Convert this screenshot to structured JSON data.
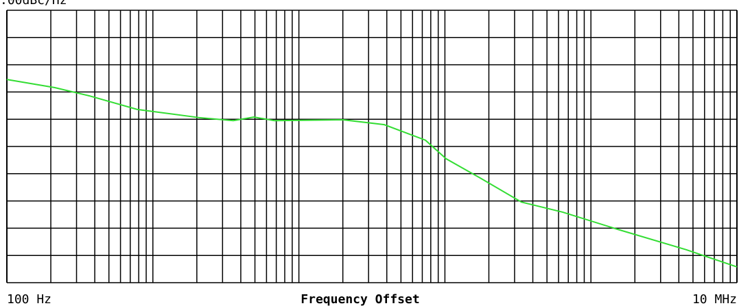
{
  "chart_data": {
    "type": "line",
    "scale_label": ".00dBc/Hz",
    "xlabel": "Frequency Offset",
    "xscale": "log",
    "xlim": [
      100,
      10000000
    ],
    "xticks": [
      {
        "value": 100,
        "label": "100 Hz"
      },
      {
        "value": 10000000,
        "label": "10 MHz"
      }
    ],
    "xgrid": [
      200,
      300,
      400,
      500,
      600,
      700,
      800,
      900,
      1000,
      2000,
      3000,
      4000,
      5000,
      6000,
      7000,
      8000,
      9000,
      10000,
      20000,
      30000,
      40000,
      50000,
      60000,
      70000,
      80000,
      90000,
      100000,
      200000,
      300000,
      400000,
      500000,
      600000,
      700000,
      800000,
      900000,
      1000000,
      2000000,
      3000000,
      4000000,
      5000000,
      6000000,
      7000000,
      8000000,
      9000000
    ],
    "ylim": [
      0,
      10
    ],
    "yticks": [
      0,
      1,
      2,
      3,
      4,
      5,
      6,
      7,
      8,
      9,
      10
    ],
    "grid": true,
    "series": [
      {
        "color": "#33dd33",
        "x": [
          100,
          213,
          366,
          781,
          2070,
          3556,
          4920,
          6800,
          20090,
          38450,
          73600,
          101800,
          174700,
          334000,
          640000,
          1520000,
          4490000,
          10000000
        ],
        "values": [
          7.46,
          7.16,
          6.86,
          6.36,
          6.06,
          5.95,
          6.08,
          5.95,
          5.98,
          5.8,
          5.23,
          4.55,
          3.84,
          2.96,
          2.59,
          1.96,
          1.21,
          0.58
        ]
      }
    ]
  }
}
